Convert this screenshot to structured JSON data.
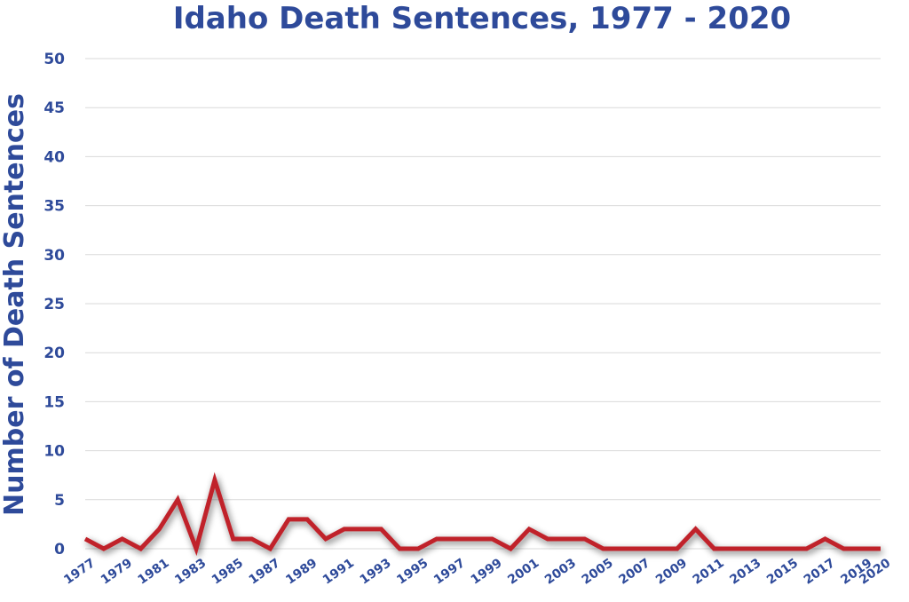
{
  "chart_data": {
    "type": "line",
    "title": "Idaho Death Sentences, 1977 - 2020",
    "xlabel": "",
    "ylabel": "Number of Death Sentences",
    "ylim": [
      0,
      50
    ],
    "yticks": [
      "0",
      "5",
      "10",
      "15",
      "20",
      "25",
      "30",
      "35",
      "40",
      "45",
      "50"
    ],
    "grid": true,
    "legend": "none",
    "x": [
      1977,
      1978,
      1979,
      1980,
      1981,
      1982,
      1983,
      1984,
      1985,
      1986,
      1987,
      1988,
      1989,
      1990,
      1991,
      1992,
      1993,
      1994,
      1995,
      1996,
      1997,
      1998,
      1999,
      2000,
      2001,
      2002,
      2003,
      2004,
      2005,
      2006,
      2007,
      2008,
      2009,
      2010,
      2011,
      2012,
      2013,
      2014,
      2015,
      2016,
      2017,
      2018,
      2019,
      2020
    ],
    "xtick_labels": [
      "1977",
      "1979",
      "1981",
      "1983",
      "1985",
      "1987",
      "1989",
      "1991",
      "1993",
      "1995",
      "1997",
      "1999",
      "2001",
      "2003",
      "2005",
      "2007",
      "2009",
      "2011",
      "2013",
      "2015",
      "2017",
      "2019",
      "2020"
    ],
    "xtick_years": [
      1977,
      1979,
      1981,
      1983,
      1985,
      1987,
      1989,
      1991,
      1993,
      1995,
      1997,
      1999,
      2001,
      2003,
      2005,
      2007,
      2009,
      2011,
      2013,
      2015,
      2017,
      2019,
      2020
    ],
    "series": [
      {
        "name": "",
        "color": "#c0202a",
        "values": [
          1,
          0,
          1,
          0,
          2,
          5,
          0,
          7,
          1,
          1,
          0,
          3,
          3,
          1,
          2,
          2,
          2,
          0,
          0,
          1,
          1,
          1,
          1,
          0,
          2,
          1,
          1,
          1,
          0,
          0,
          0,
          0,
          0,
          2,
          0,
          0,
          0,
          0,
          0,
          0,
          1,
          0,
          0,
          0
        ]
      }
    ],
    "colors": {
      "text": "#2e4a9a",
      "line": "#c0202a",
      "grid": "#d9d9d9"
    }
  }
}
